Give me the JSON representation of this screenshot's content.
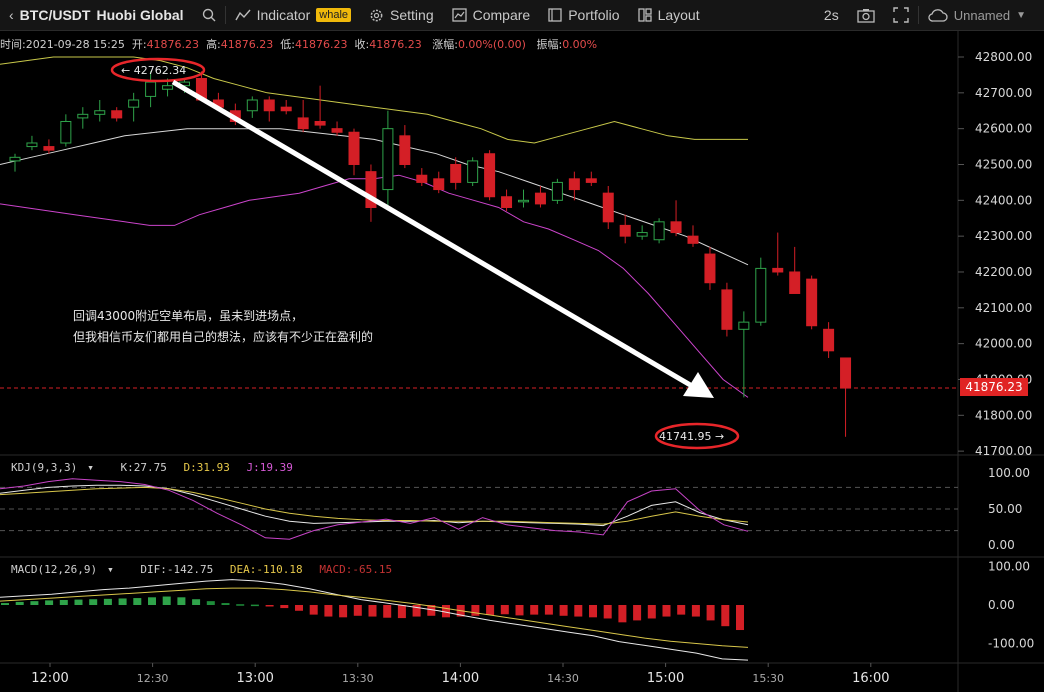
{
  "toolbar": {
    "symbol": "BTC/USDT",
    "exchange": "Huobi Global",
    "indicator_label": "Indicator",
    "indicator_badge": "whale",
    "setting_label": "Setting",
    "compare_label": "Compare",
    "portfolio_label": "Portfolio",
    "layout_label": "Layout",
    "interval": "2s",
    "account_label": "Unnamed"
  },
  "info": {
    "time_label": "时间:",
    "time_value": "2021-09-28 15:25",
    "open_label": "开:",
    "open_value": "41876.23",
    "high_label": "高:",
    "high_value": "41876.23",
    "low_label": "低:",
    "low_value": "41876.23",
    "close_label": "收:",
    "close_value": "41876.23",
    "change_label": "涨幅:",
    "change_value": "0.00%(0.00)",
    "amp_label": "振幅:",
    "amp_value": "0.00%"
  },
  "price_axis": [
    "42800.00",
    "42700.00",
    "42600.00",
    "42500.00",
    "42400.00",
    "42300.00",
    "42200.00",
    "42100.00",
    "42000.00",
    "41900.00",
    "41800.00",
    "41700.00"
  ],
  "current_price": "41876.23",
  "kdj": {
    "name": "KDJ(9,3,3)",
    "k": "K:27.75",
    "d": "D:31.93",
    "j": "J:19.39",
    "axis": [
      "100.00",
      "50.00",
      "0.00"
    ]
  },
  "macd": {
    "name": "MACD(12,26,9)",
    "dif": "DIF:-142.75",
    "dea": "DEA:-110.18",
    "macd": "MACD:-65.15",
    "axis": [
      "100.00",
      "0.00",
      "-100.00"
    ]
  },
  "time_axis": [
    "12:00",
    "12:30",
    "13:00",
    "13:30",
    "14:00",
    "14:30",
    "15:00",
    "15:30",
    "16:00"
  ],
  "annotation": {
    "line1": "回调43000附近空单布局，虽未到进场点，",
    "line2": "但我相信币友们都用自己的想法，应该有不少正在盈利的",
    "high_marker": "← 42762.34",
    "low_marker": "41741.95 →"
  },
  "colors": {
    "up": "#2fa34a",
    "down": "#d41f26",
    "boll_upper": "#c8c84a",
    "boll_mid": "#d8d8d8",
    "boll_lower": "#cc44cc",
    "ellipse": "#e8262a"
  }
}
